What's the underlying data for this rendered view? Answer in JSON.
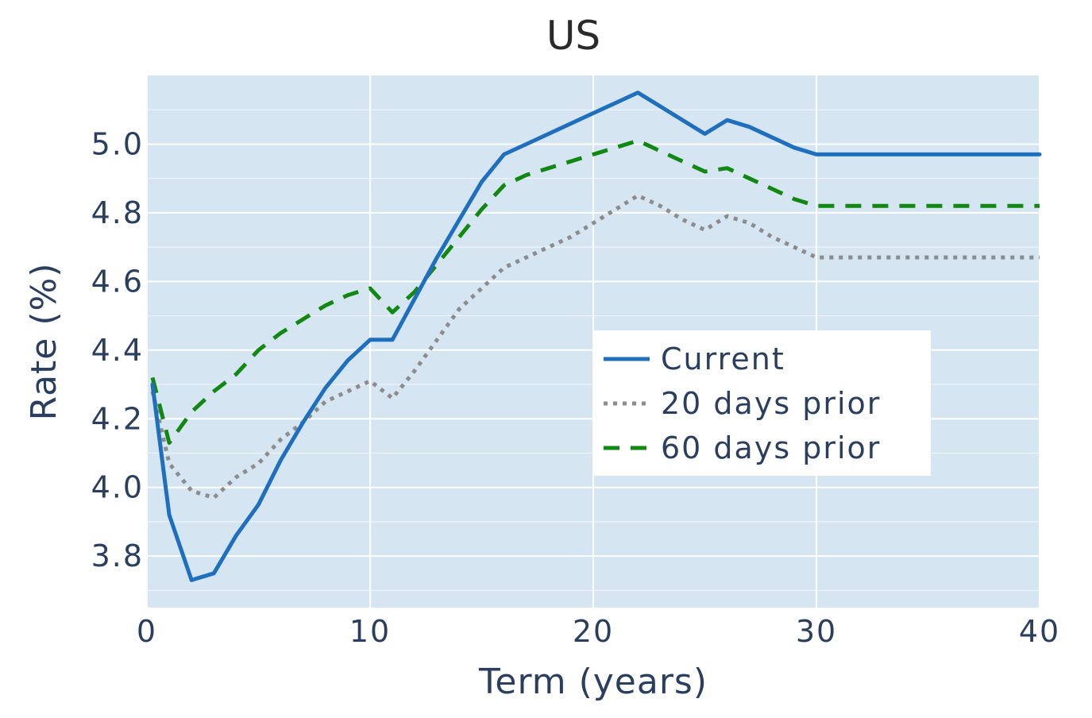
{
  "chart_data": {
    "type": "line",
    "title": "US",
    "xlabel": "Term (years)",
    "ylabel": "Rate (%)",
    "xlim": [
      0,
      40
    ],
    "ylim": [
      3.65,
      5.2
    ],
    "xticks": [
      0,
      10,
      20,
      30,
      40
    ],
    "yticks": [
      3.8,
      4.0,
      4.2,
      4.4,
      4.6,
      4.8,
      5.0
    ],
    "grid": true,
    "legend_position": "center-right",
    "colors": {
      "plot_background": "#d5e5f2",
      "grid": "#ffffff",
      "text": "#2a3f5f"
    },
    "x": [
      0.25,
      1,
      2,
      3,
      4,
      5,
      6,
      7,
      8,
      9,
      10,
      11,
      12,
      13,
      14,
      15,
      16,
      17,
      18,
      19,
      20,
      21,
      22,
      23,
      24,
      25,
      26,
      27,
      28,
      29,
      30,
      35,
      40
    ],
    "series": [
      {
        "name": "Current",
        "color": "#1f6fbf",
        "dash": "solid",
        "values": [
          4.3,
          3.92,
          3.73,
          3.75,
          3.86,
          3.95,
          4.08,
          4.19,
          4.29,
          4.37,
          4.43,
          4.43,
          4.55,
          4.67,
          4.78,
          4.89,
          4.97,
          5.0,
          5.03,
          5.06,
          5.09,
          5.12,
          5.15,
          5.11,
          5.07,
          5.03,
          5.07,
          5.05,
          5.02,
          4.99,
          4.97,
          4.97,
          4.97
        ]
      },
      {
        "name": "20 days prior",
        "color": "#8c8c8c",
        "dash": "dot",
        "values": [
          4.28,
          4.07,
          3.99,
          3.97,
          4.03,
          4.07,
          4.14,
          4.19,
          4.25,
          4.28,
          4.31,
          4.26,
          4.34,
          4.43,
          4.52,
          4.58,
          4.64,
          4.67,
          4.7,
          4.73,
          4.77,
          4.81,
          4.85,
          4.82,
          4.78,
          4.75,
          4.79,
          4.77,
          4.73,
          4.7,
          4.67,
          4.67,
          4.67
        ]
      },
      {
        "name": "60 days prior",
        "color": "#118811",
        "dash": "dash",
        "values": [
          4.32,
          4.13,
          4.22,
          4.28,
          4.33,
          4.4,
          4.45,
          4.49,
          4.53,
          4.56,
          4.58,
          4.51,
          4.57,
          4.65,
          4.73,
          4.81,
          4.88,
          4.91,
          4.93,
          4.95,
          4.97,
          4.99,
          5.01,
          4.98,
          4.95,
          4.92,
          4.93,
          4.9,
          4.87,
          4.84,
          4.82,
          4.82,
          4.82
        ]
      }
    ]
  }
}
